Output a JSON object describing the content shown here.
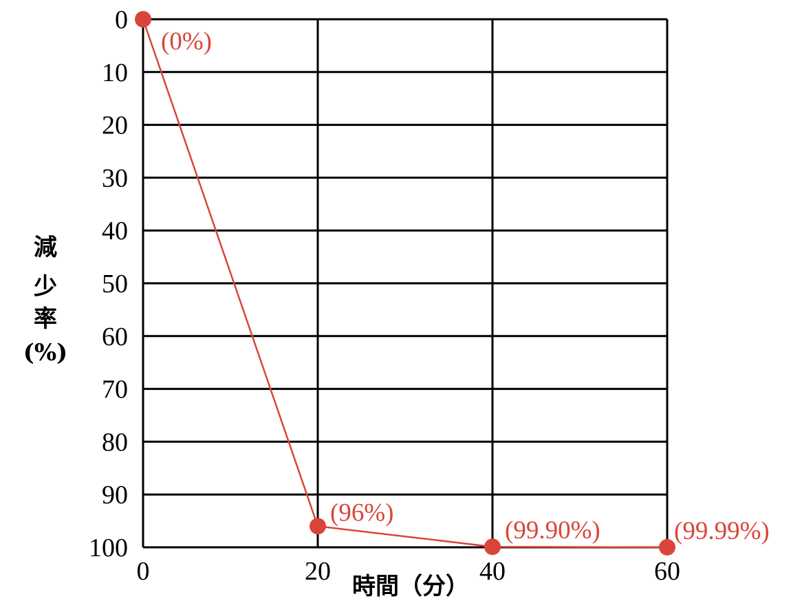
{
  "chart_data": {
    "type": "line",
    "xlabel": "時間（分）",
    "ylabel": [
      "減",
      "少",
      "率",
      "(%)"
    ],
    "x_ticks": [
      "0",
      "20",
      "40",
      "60"
    ],
    "y_ticks": [
      "0",
      "10",
      "20",
      "30",
      "40",
      "50",
      "60",
      "70",
      "80",
      "90",
      "100"
    ],
    "xlim": [
      0,
      60
    ],
    "ylim": [
      0,
      100
    ],
    "y_inverted": true,
    "grid": true,
    "series": [
      {
        "x": [
          0,
          20,
          40,
          60
        ],
        "y": [
          0,
          96,
          99.9,
          99.99
        ],
        "labels": [
          "(0%)",
          "(96%)",
          "(99.90%)",
          "(99.99%)"
        ],
        "color": "#d9453a"
      }
    ]
  }
}
